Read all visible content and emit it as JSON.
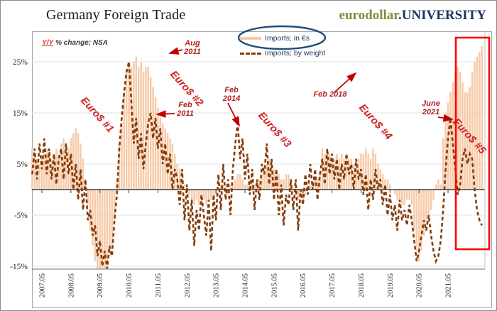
{
  "header": {
    "title": "Germany Foreign Trade",
    "logo_left": "eurodollar",
    "logo_right": ".UNIVERSITY"
  },
  "note": {
    "yy": "Y/Y",
    "rest": "% change; NSA"
  },
  "legend": [
    {
      "label": "Imports; in €s",
      "swatch": "solid-peach-line"
    },
    {
      "label": "Imports; by weight",
      "swatch": "dashed-brown-line"
    }
  ],
  "annotations": {
    "aug_2011": "Aug\n2011",
    "feb_2011": "Feb\n2011",
    "feb_2014": "Feb\n2014",
    "feb_2018": "Feb 2018",
    "june_2021": "June\n2021",
    "euro1": "Euro$ #1",
    "euro2": "Euro$ #2",
    "euro3": "Euro$ #3",
    "euro4": "Euro$ #4",
    "euro5": "Euro$ #5"
  },
  "colors": {
    "bar": "#f6cbaa",
    "line": "#843c0c",
    "annotation_red": "#c00000",
    "highlight_rect": "#ff0000",
    "ellipse": "#1f4e79",
    "grid": "#e2e2e2",
    "axis": "#404040",
    "logo_green": "#76923c",
    "logo_navy": "#17365d"
  },
  "chart_data": {
    "type": "bar+line combo, monthly Y/Y % change, NSA",
    "x_start": "2007-01",
    "x_end": "2022-07",
    "x_tick_labels": [
      "2007.05",
      "2008.05",
      "2009.05",
      "2010.05",
      "2011.05",
      "2012.05",
      "2013.05",
      "2014.05",
      "2015.05",
      "2016.05",
      "2017.05",
      "2018.05",
      "2019.05",
      "2020.05",
      "2021.05"
    ],
    "y_ticks": [
      "25%",
      "15%",
      "5%",
      "-5%",
      "-15%"
    ],
    "y_tick_values": [
      25,
      15,
      5,
      -5,
      -15
    ],
    "ylim": [
      -15.5,
      30.5
    ],
    "series": [
      {
        "name": "Imports; in €s",
        "type": "bar",
        "color": "#f6cbaa",
        "values": [
          8,
          7,
          6,
          5,
          6,
          7,
          8,
          7,
          6,
          7,
          8,
          7,
          9,
          10,
          9,
          8,
          10,
          11,
          12,
          11,
          9,
          6,
          2,
          -3,
          -8,
          -11,
          -14,
          -15.5,
          -15.5,
          -15.5,
          -15.5,
          -15,
          -13,
          -11,
          -6,
          2,
          9,
          13,
          19,
          23,
          25,
          24,
          25,
          26,
          24,
          25,
          23,
          24,
          24,
          22,
          20,
          18,
          16,
          14,
          13,
          12,
          11,
          10,
          9,
          7,
          5,
          4,
          2,
          1,
          0,
          -1,
          -2,
          -3,
          -2,
          -3,
          -3,
          -2,
          -3,
          -2,
          -2,
          -1,
          -1,
          0,
          1,
          1,
          0,
          -1,
          1,
          1,
          2,
          3,
          3,
          2,
          1,
          1,
          2,
          2,
          1,
          2,
          2,
          3,
          4,
          5,
          6,
          5,
          4,
          4,
          3,
          2,
          2,
          3,
          3,
          2,
          0,
          -1,
          -2,
          -1,
          -2,
          -1,
          0,
          1,
          1,
          2,
          2,
          3,
          8,
          7,
          8,
          7,
          6,
          6,
          7,
          6,
          7,
          6,
          7,
          6,
          6,
          5,
          6,
          6,
          7,
          7,
          8,
          7,
          6,
          8,
          7,
          5,
          4,
          3,
          2,
          2,
          1,
          0,
          -1,
          -2,
          -2,
          -3,
          -3,
          -2,
          -2,
          -3,
          -8,
          -12,
          -14,
          -12,
          -9,
          -7,
          -5,
          -4,
          -2,
          1,
          2,
          1,
          10,
          15,
          17,
          19,
          21,
          23,
          24,
          23,
          21,
          19,
          19,
          20,
          23,
          25,
          26,
          27,
          28
        ]
      },
      {
        "name": "Imports; by weight",
        "type": "dashed-line",
        "color": "#843c0c",
        "values": [
          3,
          8,
          2,
          9,
          4,
          10,
          3,
          8,
          2,
          7,
          1,
          6,
          8,
          2,
          9,
          3,
          7,
          0,
          5,
          -2,
          4,
          -4,
          2,
          -6,
          -4,
          -9,
          -7,
          -13,
          -10,
          -15,
          -12,
          -16,
          -11,
          -13,
          -6,
          -1,
          8,
          14,
          19,
          23,
          25,
          17,
          9,
          14,
          6,
          11,
          4,
          9,
          13,
          15,
          10,
          14,
          8,
          12,
          5,
          9,
          3,
          7,
          0,
          4,
          2,
          -3,
          4,
          -6,
          1,
          -8,
          -2,
          -11,
          -4,
          -8,
          -1,
          -5,
          -9,
          -2,
          -12,
          -1,
          -6,
          3,
          -4,
          5,
          -2,
          2,
          -5,
          4,
          9,
          13,
          6,
          10,
          2,
          7,
          -1,
          4,
          -4,
          2,
          -2,
          5,
          3,
          9,
          1,
          6,
          -2,
          4,
          -5,
          1,
          -7,
          -1,
          -3,
          2,
          -4,
          2,
          -8,
          0,
          -3,
          3,
          -1,
          5,
          0,
          4,
          -2,
          3,
          6,
          1,
          8,
          3,
          7,
          2,
          6,
          0,
          5,
          2,
          7,
          3,
          5,
          0,
          6,
          2,
          4,
          -1,
          3,
          -4,
          2,
          -2,
          4,
          0,
          2,
          -3,
          1,
          -5,
          -1,
          -6,
          -3,
          -8,
          -2,
          -6,
          -4,
          -7,
          -3,
          -6,
          -10,
          -14,
          -12,
          -9,
          -6,
          -8,
          -5,
          -9,
          -12,
          -14,
          -13,
          -10,
          -4,
          4,
          10,
          14,
          9,
          4,
          -1,
          1,
          6,
          8,
          5,
          7,
          6,
          0,
          -4,
          -6,
          -7
        ]
      }
    ],
    "annotations_meaning": "Red arrows mark Aug 2011, Feb 2011, Feb 2014, Feb 2018, June 2021; rotated red labels mark Euro$ #1..#5 episodes; red rectangle highlights period from ~Aug 2021 to end; blue ellipse circles the 'Imports; in €s' legend entry"
  }
}
